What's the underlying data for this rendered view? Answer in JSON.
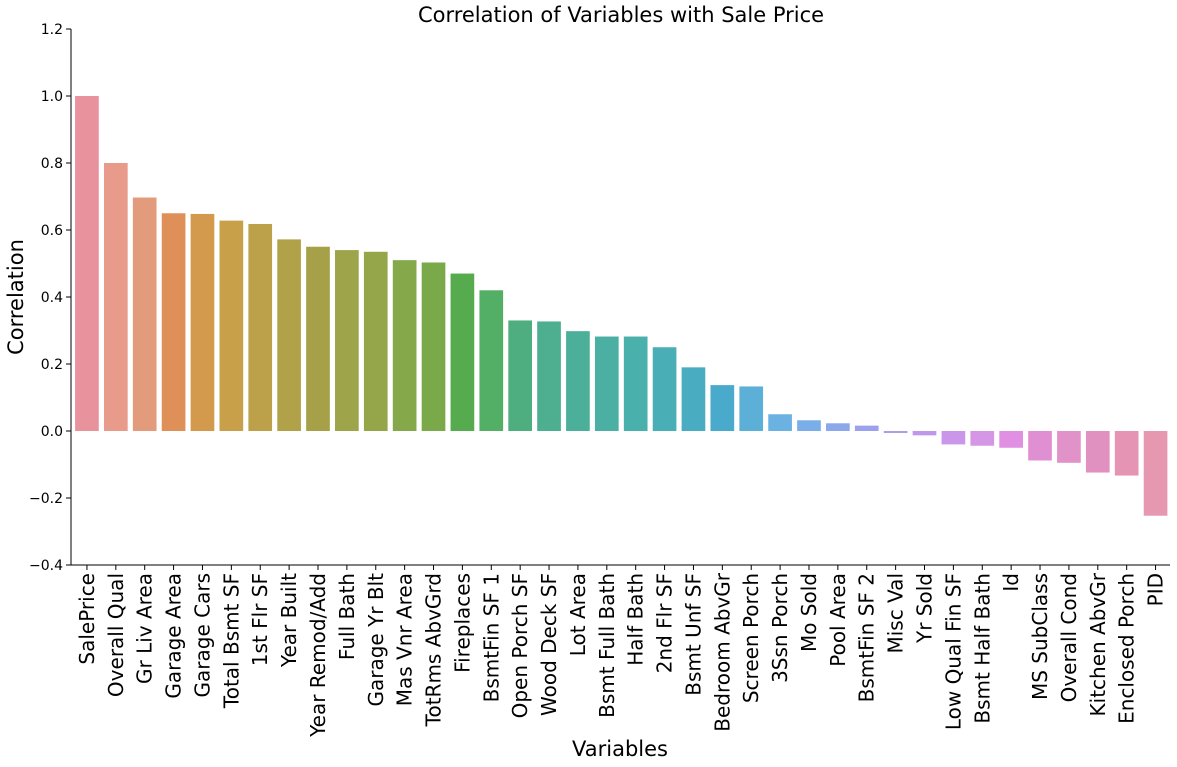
{
  "chart_data": {
    "type": "bar",
    "title": "Correlation of Variables with Sale Price",
    "xlabel": "Variables",
    "ylabel": "Correlation",
    "ylim": [
      -0.4,
      1.2
    ],
    "yticks": [
      -0.4,
      -0.2,
      0.0,
      0.2,
      0.4,
      0.6,
      0.8,
      1.0,
      1.2
    ],
    "ytick_labels": [
      "−0.4",
      "−0.2",
      "0.0",
      "0.2",
      "0.4",
      "0.6",
      "0.8",
      "1.0",
      "1.2"
    ],
    "grid": false,
    "categories": [
      "SalePrice",
      "Overall Qual",
      "Gr Liv Area",
      "Garage Area",
      "Garage Cars",
      "Total Bsmt SF",
      "1st Flr SF",
      "Year Built",
      "Year Remod/Add",
      "Full Bath",
      "Garage Yr Blt",
      "Mas Vnr Area",
      "TotRms AbvGrd",
      "Fireplaces",
      "BsmtFin SF 1",
      "Open Porch SF",
      "Wood Deck SF",
      "Lot Area",
      "Bsmt Full Bath",
      "Half Bath",
      "2nd Flr SF",
      "Bsmt Unf SF",
      "Bedroom AbvGr",
      "Screen Porch",
      "3Ssn Porch",
      "Mo Sold",
      "Pool Area",
      "BsmtFin SF 2",
      "Misc Val",
      "Yr Sold",
      "Low Qual Fin SF",
      "Bsmt Half Bath",
      "Id",
      "MS SubClass",
      "Overall Cond",
      "Kitchen AbvGr",
      "Enclosed Porch",
      "PID"
    ],
    "values": [
      1.0,
      0.8,
      0.697,
      0.65,
      0.648,
      0.628,
      0.618,
      0.572,
      0.55,
      0.54,
      0.535,
      0.51,
      0.503,
      0.47,
      0.42,
      0.33,
      0.327,
      0.298,
      0.282,
      0.282,
      0.25,
      0.19,
      0.137,
      0.133,
      0.05,
      0.032,
      0.023,
      0.016,
      -0.006,
      -0.013,
      -0.04,
      -0.044,
      -0.05,
      -0.088,
      -0.095,
      -0.124,
      -0.133,
      -0.253
    ],
    "colors": [
      "#e8929d",
      "#e89a8b",
      "#e39c7b",
      "#df9058",
      "#d39a4d",
      "#c7a049",
      "#bca14a",
      "#b1a24a",
      "#a6a148",
      "#9da449",
      "#95a54a",
      "#85a84a",
      "#7aa94a",
      "#56ab4e",
      "#53ae66",
      "#4fae80",
      "#4eae90",
      "#4baf99",
      "#4bb0a3",
      "#4ab0ac",
      "#4aaeb7",
      "#4aacc1",
      "#4aaacc",
      "#5cafd6",
      "#6bb2e3",
      "#79aee8",
      "#8aa8ea",
      "#9ca1ec",
      "#ae9ced",
      "#bf97ec",
      "#c996e9",
      "#d596e6",
      "#e18fe3",
      "#e08fd3",
      "#e192c9",
      "#e191bf",
      "#e595b3",
      "#e798b1"
    ]
  }
}
